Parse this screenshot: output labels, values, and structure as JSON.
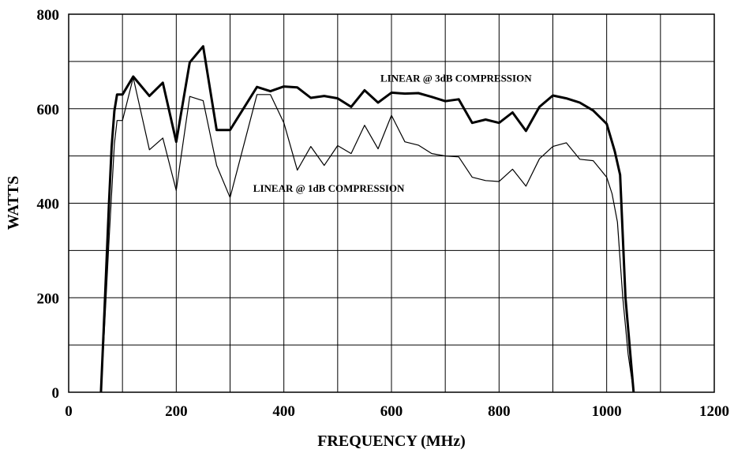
{
  "chart_data": {
    "type": "line",
    "xlabel": "FREQUENCY (MHz)",
    "ylabel": "WATTS",
    "xlim": [
      0,
      1200
    ],
    "ylim": [
      0,
      800
    ],
    "x_ticks": [
      0,
      200,
      400,
      600,
      800,
      1000,
      1200
    ],
    "y_ticks": [
      0,
      200,
      400,
      600,
      800
    ],
    "x_grid_step": 100,
    "y_grid_step": 100,
    "grid": true,
    "series": [
      {
        "name": "LINEAR @ 3dB COMPRESSION",
        "line_weight": "heavy",
        "color": "#000000",
        "x": [
          60,
          65,
          75,
          80,
          85,
          90,
          100,
          120,
          150,
          175,
          200,
          225,
          250,
          275,
          300,
          350,
          375,
          400,
          425,
          450,
          475,
          500,
          525,
          550,
          575,
          600,
          625,
          650,
          675,
          700,
          725,
          750,
          775,
          800,
          825,
          850,
          875,
          900,
          925,
          950,
          975,
          1000,
          1015,
          1025,
          1035,
          1050
        ],
        "y": [
          0,
          130,
          400,
          520,
          595,
          630,
          630,
          668,
          627,
          655,
          530,
          698,
          732,
          555,
          555,
          646,
          637,
          647,
          645,
          623,
          627,
          622,
          604,
          639,
          613,
          634,
          632,
          633,
          625,
          616,
          620,
          570,
          577,
          570,
          592,
          553,
          604,
          628,
          622,
          613,
          596,
          568,
          510,
          460,
          200,
          0
        ]
      },
      {
        "name": "LINEAR @ 1dB COMPRESSION",
        "line_weight": "light",
        "color": "#000000",
        "x": [
          60,
          65,
          75,
          85,
          90,
          100,
          120,
          150,
          175,
          200,
          225,
          250,
          275,
          300,
          350,
          375,
          400,
          425,
          450,
          475,
          500,
          525,
          550,
          575,
          600,
          625,
          650,
          675,
          700,
          725,
          750,
          775,
          800,
          825,
          850,
          875,
          900,
          925,
          950,
          975,
          1000,
          1010,
          1020,
          1030,
          1040,
          1050
        ],
        "y": [
          0,
          100,
          320,
          525,
          575,
          575,
          666,
          513,
          538,
          427,
          626,
          617,
          480,
          412,
          630,
          630,
          570,
          470,
          520,
          480,
          522,
          505,
          565,
          515,
          586,
          530,
          523,
          505,
          500,
          498,
          455,
          448,
          446,
          472,
          436,
          494,
          520,
          528,
          493,
          490,
          455,
          420,
          360,
          200,
          80,
          0
        ]
      }
    ],
    "annotations": [
      {
        "text": "LINEAR @ 3dB COMPRESSION",
        "x": 720,
        "y": 657,
        "anchor": "middle"
      },
      {
        "text": "LINEAR @ 1dB COMPRESSION",
        "x": 343,
        "y": 424,
        "anchor": "start"
      }
    ]
  }
}
